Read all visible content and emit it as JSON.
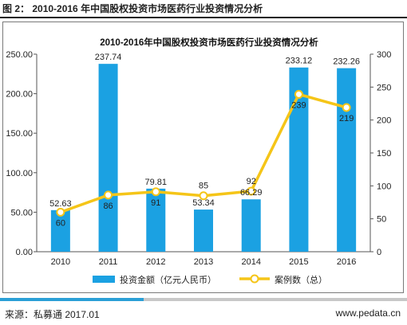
{
  "caption": "图 2：  2010-2016 年中国股权投资市场医药行业投资情况分析",
  "footer": {
    "source": "来源：私募通 2017.01",
    "site": "www.pedata.cn"
  },
  "colors": {
    "bar": "#1ba1e2",
    "line": "#f5c518",
    "accent": "#2a9fd6"
  },
  "chart_data": {
    "type": "bar",
    "title": "2010-2016年中国股权投资市场医药行业投资情况分析",
    "categories": [
      "2010",
      "2011",
      "2012",
      "2013",
      "2014",
      "2015",
      "2016"
    ],
    "series": [
      {
        "name": "投资金额（亿元人民币）",
        "type": "bar",
        "axis": "left",
        "values": [
          52.63,
          237.74,
          79.81,
          53.34,
          66.29,
          233.12,
          232.26
        ],
        "labels": [
          "52.63",
          "237.74",
          "79.81",
          "53.34",
          "66.29",
          "233.12",
          "232.26"
        ]
      },
      {
        "name": "案例数（总）",
        "type": "line",
        "axis": "right",
        "values": [
          60,
          86,
          91,
          85,
          92,
          239,
          219
        ],
        "labels": [
          "60",
          "86",
          "91",
          "85",
          "92",
          "239",
          "219"
        ]
      }
    ],
    "y_left": {
      "min": 0,
      "max": 250,
      "ticks": [
        "0.00",
        "50.00",
        "100.00",
        "150.00",
        "200.00",
        "250.00"
      ]
    },
    "y_right": {
      "min": 0,
      "max": 300,
      "ticks": [
        "0",
        "50",
        "100",
        "150",
        "200",
        "250",
        "300"
      ]
    },
    "grid": false,
    "legend": "bottom"
  }
}
